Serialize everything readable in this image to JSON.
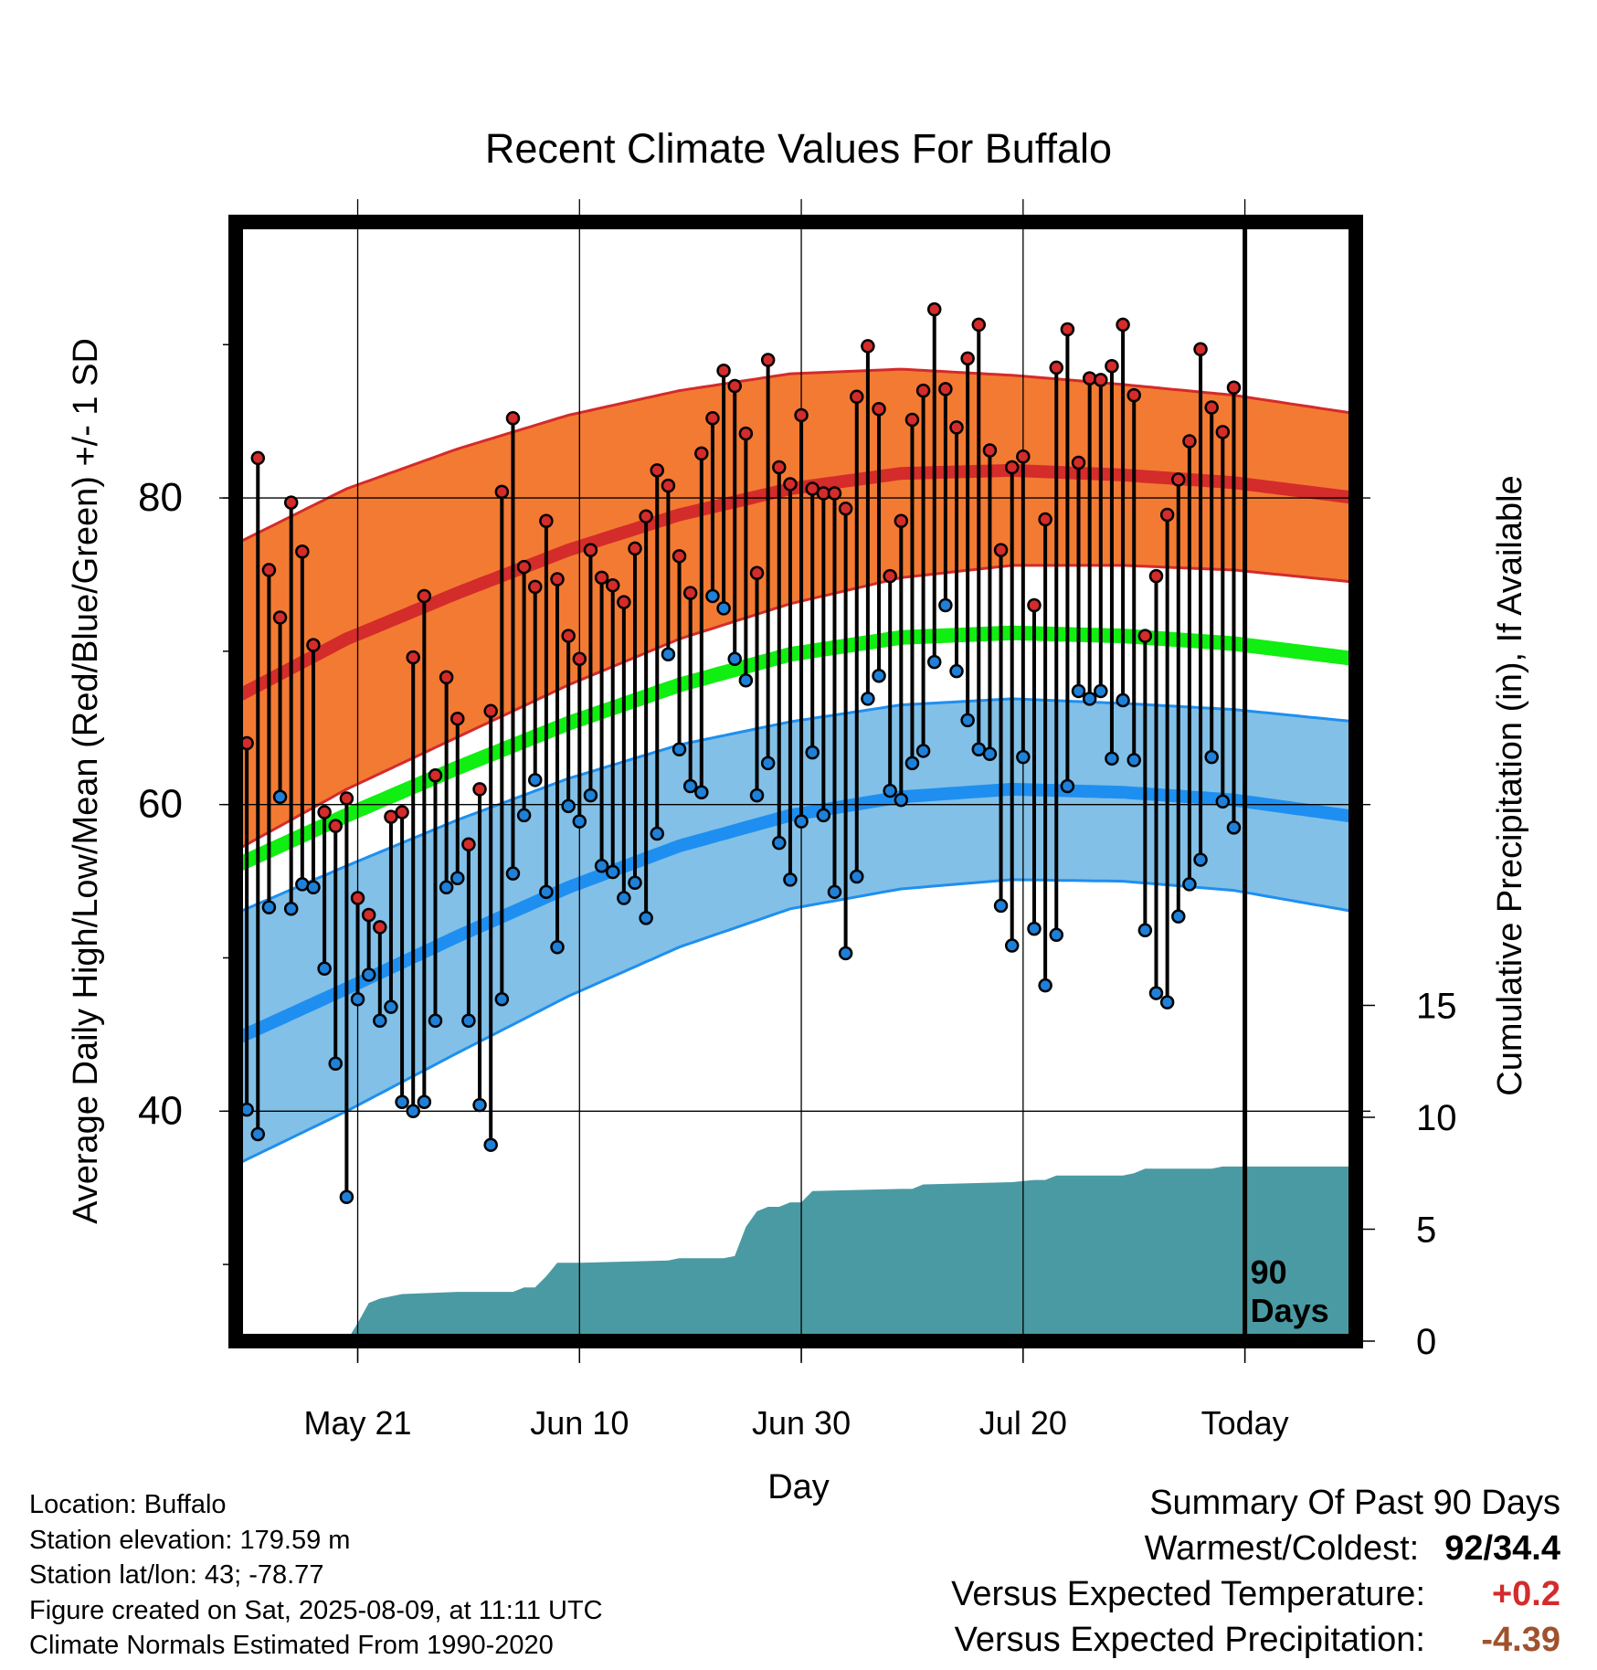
{
  "chart_data": {
    "type": "line",
    "title": "Recent Climate Values For Buffalo",
    "xlabel": "Day",
    "ylabel": "Average Daily High/Low/Mean (Red/Blue/Green) +/- 1 SD",
    "y2label": "Cumulative Precipitation (in), If Available",
    "x_ticks": [
      "May 21",
      "Jun 10",
      "Jun 30",
      "Jul 20",
      "Today"
    ],
    "x_tick_days": [
      11,
      31,
      51,
      71,
      91
    ],
    "xlim": [
      0,
      101
    ],
    "y_ticks": [
      40,
      60,
      80
    ],
    "ylim": [
      25,
      98
    ],
    "y2_ticks": [
      0,
      5,
      10,
      15
    ],
    "y2lim": [
      0,
      50
    ],
    "grid": true,
    "today_marker": {
      "day": 91,
      "label": [
        "90",
        "Days"
      ]
    },
    "colors": {
      "high_band": "#f37a32",
      "high_line": "#d42b2b",
      "high_band_edge": "#d42b2b",
      "low_band": "#82c0e7",
      "low_line": "#1e8ff0",
      "low_band_edge": "#1e8ff0",
      "mean_line": "#11ee11",
      "precip": "#4a9aa3",
      "dot_high": "#d42b2b",
      "dot_low": "#1e80d8"
    },
    "normal_high": {
      "days": [
        0,
        10,
        20,
        30,
        40,
        50,
        60,
        70,
        80,
        90,
        101
      ],
      "mean": [
        67,
        70.8,
        73.8,
        76.6,
        78.9,
        80.6,
        81.6,
        81.8,
        81.5,
        81,
        80
      ],
      "sd": [
        10,
        9.8,
        9.4,
        8.8,
        8.1,
        7.5,
        6.8,
        6.2,
        5.9,
        5.7,
        5.5
      ]
    },
    "normal_mean": {
      "days": [
        0,
        10,
        20,
        30,
        40,
        50,
        60,
        70,
        80,
        90,
        101
      ],
      "values": [
        56,
        59.3,
        62.4,
        65.3,
        67.8,
        69.8,
        70.9,
        71.2,
        71,
        70.5,
        69.5
      ]
    },
    "normal_low": {
      "days": [
        0,
        10,
        20,
        30,
        40,
        50,
        60,
        70,
        80,
        90,
        101
      ],
      "mean": [
        44.7,
        48,
        51.4,
        54.6,
        57.3,
        59.3,
        60.5,
        61,
        60.8,
        60.3,
        59.2
      ],
      "sd": [
        8.2,
        8,
        7.6,
        7.1,
        6.6,
        6.1,
        6,
        5.9,
        5.8,
        5.9,
        6.2
      ]
    },
    "daily": {
      "day_start": 1,
      "high": [
        64,
        82.6,
        75.3,
        72.2,
        79.7,
        76.5,
        70.4,
        59.5,
        58.6,
        60.4,
        53.9,
        52.8,
        52,
        59.2,
        59.5,
        69.6,
        73.6,
        61.9,
        68.3,
        65.6,
        57.4,
        61,
        66.1,
        80.4,
        85.2,
        75.5,
        74.2,
        78.5,
        74.7,
        71,
        69.5,
        76.6,
        74.8,
        74.3,
        73.2,
        76.7,
        78.8,
        81.8,
        80.8,
        76.2,
        73.8,
        82.9,
        85.2,
        88.3,
        87.3,
        84.2,
        75.1,
        89,
        82,
        80.9,
        85.4,
        80.6,
        80.3,
        80.3,
        79.3,
        86.6,
        89.9,
        85.8,
        74.9,
        78.5,
        85.1,
        87,
        92.3,
        87.1,
        84.6,
        89.1,
        91.3,
        83.1,
        76.6,
        82,
        82.7,
        73,
        78.6,
        88.5,
        91,
        82.3,
        87.8,
        87.7,
        88.6,
        91.3,
        86.7,
        71,
        74.9,
        78.9,
        81.2,
        83.7,
        89.7,
        85.9,
        84.3,
        87.2
      ],
      "low": [
        40.1,
        38.5,
        53.3,
        60.5,
        53.2,
        54.8,
        54.6,
        49.3,
        43.1,
        34.4,
        47.3,
        48.9,
        45.9,
        46.8,
        40.6,
        40,
        40.6,
        45.9,
        54.6,
        55.2,
        45.9,
        40.4,
        37.8,
        47.3,
        55.5,
        59.3,
        61.6,
        54.3,
        50.7,
        59.9,
        58.9,
        60.6,
        56,
        55.6,
        53.9,
        54.9,
        52.6,
        58.1,
        69.8,
        63.6,
        61.2,
        60.8,
        73.6,
        72.8,
        69.5,
        68.1,
        60.6,
        62.7,
        57.5,
        55.1,
        58.9,
        63.4,
        59.3,
        54.3,
        50.3,
        55.3,
        66.9,
        68.4,
        60.9,
        60.3,
        62.7,
        63.5,
        69.3,
        73,
        68.7,
        65.5,
        63.6,
        63.3,
        53.4,
        50.8,
        63.1,
        51.9,
        48.2,
        51.5,
        61.2,
        67.4,
        66.9,
        67.4,
        63,
        66.8,
        62.9,
        51.8,
        47.7,
        47.1,
        52.7,
        54.8,
        56.4,
        63.1,
        60.2,
        58.5
      ]
    },
    "precip": {
      "days": [
        0,
        10,
        11,
        12,
        13,
        14,
        15,
        20,
        25,
        26,
        27,
        28,
        29,
        30,
        31,
        39,
        40,
        44,
        45,
        46,
        47,
        48,
        49,
        50,
        51,
        52,
        60,
        61,
        62,
        70,
        72,
        73,
        74,
        80,
        81,
        82,
        88,
        89,
        91,
        101
      ],
      "values": [
        0,
        0,
        0.8,
        1.7,
        1.9,
        2.0,
        2.1,
        2.2,
        2.2,
        2.4,
        2.4,
        2.9,
        3.5,
        3.5,
        3.5,
        3.6,
        3.7,
        3.7,
        3.8,
        5.1,
        5.8,
        6.0,
        6.0,
        6.2,
        6.2,
        6.7,
        6.8,
        6.8,
        7.0,
        7.1,
        7.2,
        7.2,
        7.4,
        7.4,
        7.5,
        7.7,
        7.7,
        7.8,
        7.8,
        7.8
      ]
    }
  },
  "info": {
    "location": "Location: Buffalo",
    "elevation": "Station elevation: 179.59 m",
    "latlon": "Station lat/lon: 43; -78.77",
    "created": "Figure created on Sat, 2025-08-09, at 11:11 UTC",
    "normals": "Climate Normals Estimated From 1990-2020"
  },
  "summary": {
    "title": "Summary Of Past 90 Days",
    "warmest_label": "Warmest/Coldest:",
    "warmest_value": "92/34.4",
    "temp_label": "Versus Expected Temperature:",
    "temp_value": "+0.2",
    "temp_color": "#d42b2b",
    "precip_label": "Versus Expected Precipitation:",
    "precip_value": "-4.39",
    "precip_color": "#a0522d"
  }
}
